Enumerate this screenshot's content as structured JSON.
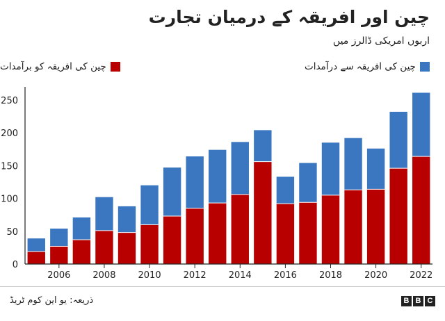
{
  "title": "چین اور افریقہ کے درمیان تجارت",
  "subtitle": "اربوں امریکی ڈالرز میں",
  "source": "ذریعہ: یو این کوم ٹریڈ",
  "logo_text": "BBC",
  "colors": {
    "exports": "#b80000",
    "imports": "#3a77c0",
    "axis": "#222222",
    "grid": "#cccccc"
  },
  "chart_data": {
    "type": "bar",
    "stacked": true,
    "x": [
      2005,
      2006,
      2007,
      2008,
      2009,
      2010,
      2011,
      2012,
      2013,
      2014,
      2015,
      2016,
      2017,
      2018,
      2019,
      2020,
      2021,
      2022
    ],
    "xticks": [
      "2006",
      "2008",
      "2010",
      "2012",
      "2014",
      "2016",
      "2018",
      "2020",
      "2022"
    ],
    "yticks": [
      "0",
      "50",
      "100",
      "150",
      "200",
      "250"
    ],
    "ylim": [
      0,
      270
    ],
    "series": [
      {
        "name": "چین کی افریقہ کو برآمدات",
        "key": "exports",
        "values": [
          19,
          27,
          37,
          51,
          48,
          60,
          73,
          85,
          93,
          106,
          156,
          92,
          94,
          105,
          113,
          114,
          146,
          164
        ]
      },
      {
        "name": "چین کی افریقہ سے درآمدات",
        "key": "imports",
        "values": [
          20,
          27,
          34,
          51,
          40,
          60,
          74,
          79,
          81,
          80,
          48,
          41,
          60,
          80,
          79,
          62,
          86,
          97
        ]
      }
    ],
    "legend_position": "top",
    "grid": false
  }
}
